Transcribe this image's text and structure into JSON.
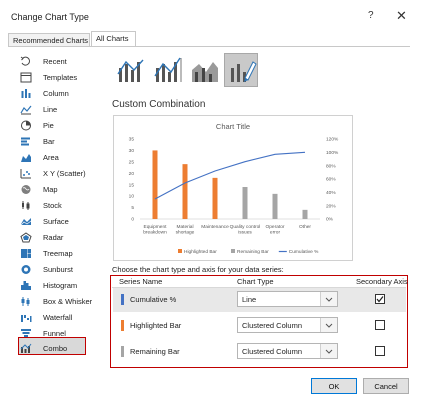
{
  "window": {
    "title": "Change Chart Type",
    "help_glyph": "?",
    "close_glyph": "✕"
  },
  "tabs": [
    {
      "label": "Recommended Charts"
    },
    {
      "label": "All Charts",
      "active": true
    }
  ],
  "sidebar": {
    "items": [
      {
        "label": "Recent",
        "icon": "recent-icon"
      },
      {
        "label": "Templates",
        "icon": "templates-icon"
      },
      {
        "label": "Column",
        "icon": "column-chart-icon"
      },
      {
        "label": "Line",
        "icon": "line-chart-icon"
      },
      {
        "label": "Pie",
        "icon": "pie-chart-icon"
      },
      {
        "label": "Bar",
        "icon": "bar-chart-icon"
      },
      {
        "label": "Area",
        "icon": "area-chart-icon"
      },
      {
        "label": "X Y (Scatter)",
        "icon": "scatter-chart-icon"
      },
      {
        "label": "Map",
        "icon": "map-chart-icon"
      },
      {
        "label": "Stock",
        "icon": "stock-chart-icon"
      },
      {
        "label": "Surface",
        "icon": "surface-chart-icon"
      },
      {
        "label": "Radar",
        "icon": "radar-chart-icon"
      },
      {
        "label": "Treemap",
        "icon": "treemap-chart-icon"
      },
      {
        "label": "Sunburst",
        "icon": "sunburst-chart-icon"
      },
      {
        "label": "Histogram",
        "icon": "histogram-chart-icon"
      },
      {
        "label": "Box & Whisker",
        "icon": "box-whisker-chart-icon"
      },
      {
        "label": "Waterfall",
        "icon": "waterfall-chart-icon"
      },
      {
        "label": "Funnel",
        "icon": "funnel-chart-icon"
      },
      {
        "label": "Combo",
        "icon": "combo-chart-icon",
        "selected": true
      }
    ]
  },
  "main": {
    "section_title": "Custom Combination",
    "choose_label": "Choose the chart type and axis for your data series:",
    "columns": {
      "name": "Series Name",
      "type": "Chart Type",
      "axis": "Secondary Axis"
    },
    "series": [
      {
        "name": "Cumulative %",
        "color": "#4472c4",
        "chart_type": "Line",
        "secondary_axis": true
      },
      {
        "name": "Highlighted Bar",
        "color": "#ed7d31",
        "chart_type": "Clustered Column",
        "secondary_axis": false
      },
      {
        "name": "Remaining Bar",
        "color": "#a5a5a5",
        "chart_type": "Clustered Column",
        "secondary_axis": false
      }
    ]
  },
  "buttons": {
    "ok": "OK",
    "cancel": "Cancel"
  },
  "chart_data": {
    "type": "bar",
    "title": "Chart Title",
    "categories": [
      "Equipment breakdown",
      "Material shortage",
      "Maintenance",
      "Quality control issues",
      "Operator error",
      "Other"
    ],
    "series": [
      {
        "name": "Highlighted Bar",
        "type": "bar",
        "color": "#ed7d31",
        "values": [
          30,
          24,
          18,
          0,
          0,
          0
        ]
      },
      {
        "name": "Remaining Bar",
        "type": "bar",
        "color": "#a5a5a5",
        "values": [
          0,
          0,
          0,
          14,
          11,
          4
        ]
      },
      {
        "name": "Cumulative %",
        "type": "line",
        "axis": "secondary",
        "color": "#4472c4",
        "values": [
          30,
          54,
          72,
          86,
          97,
          100
        ]
      }
    ],
    "ylim": [
      0,
      35
    ],
    "yticks": [
      "0",
      "5",
      "10",
      "15",
      "20",
      "25",
      "30",
      "35"
    ],
    "y2lim": [
      0,
      120
    ],
    "y2ticks": [
      "0%",
      "20%",
      "40%",
      "60%",
      "80%",
      "100%",
      "120%"
    ],
    "legend": "bottom",
    "grid": false
  }
}
